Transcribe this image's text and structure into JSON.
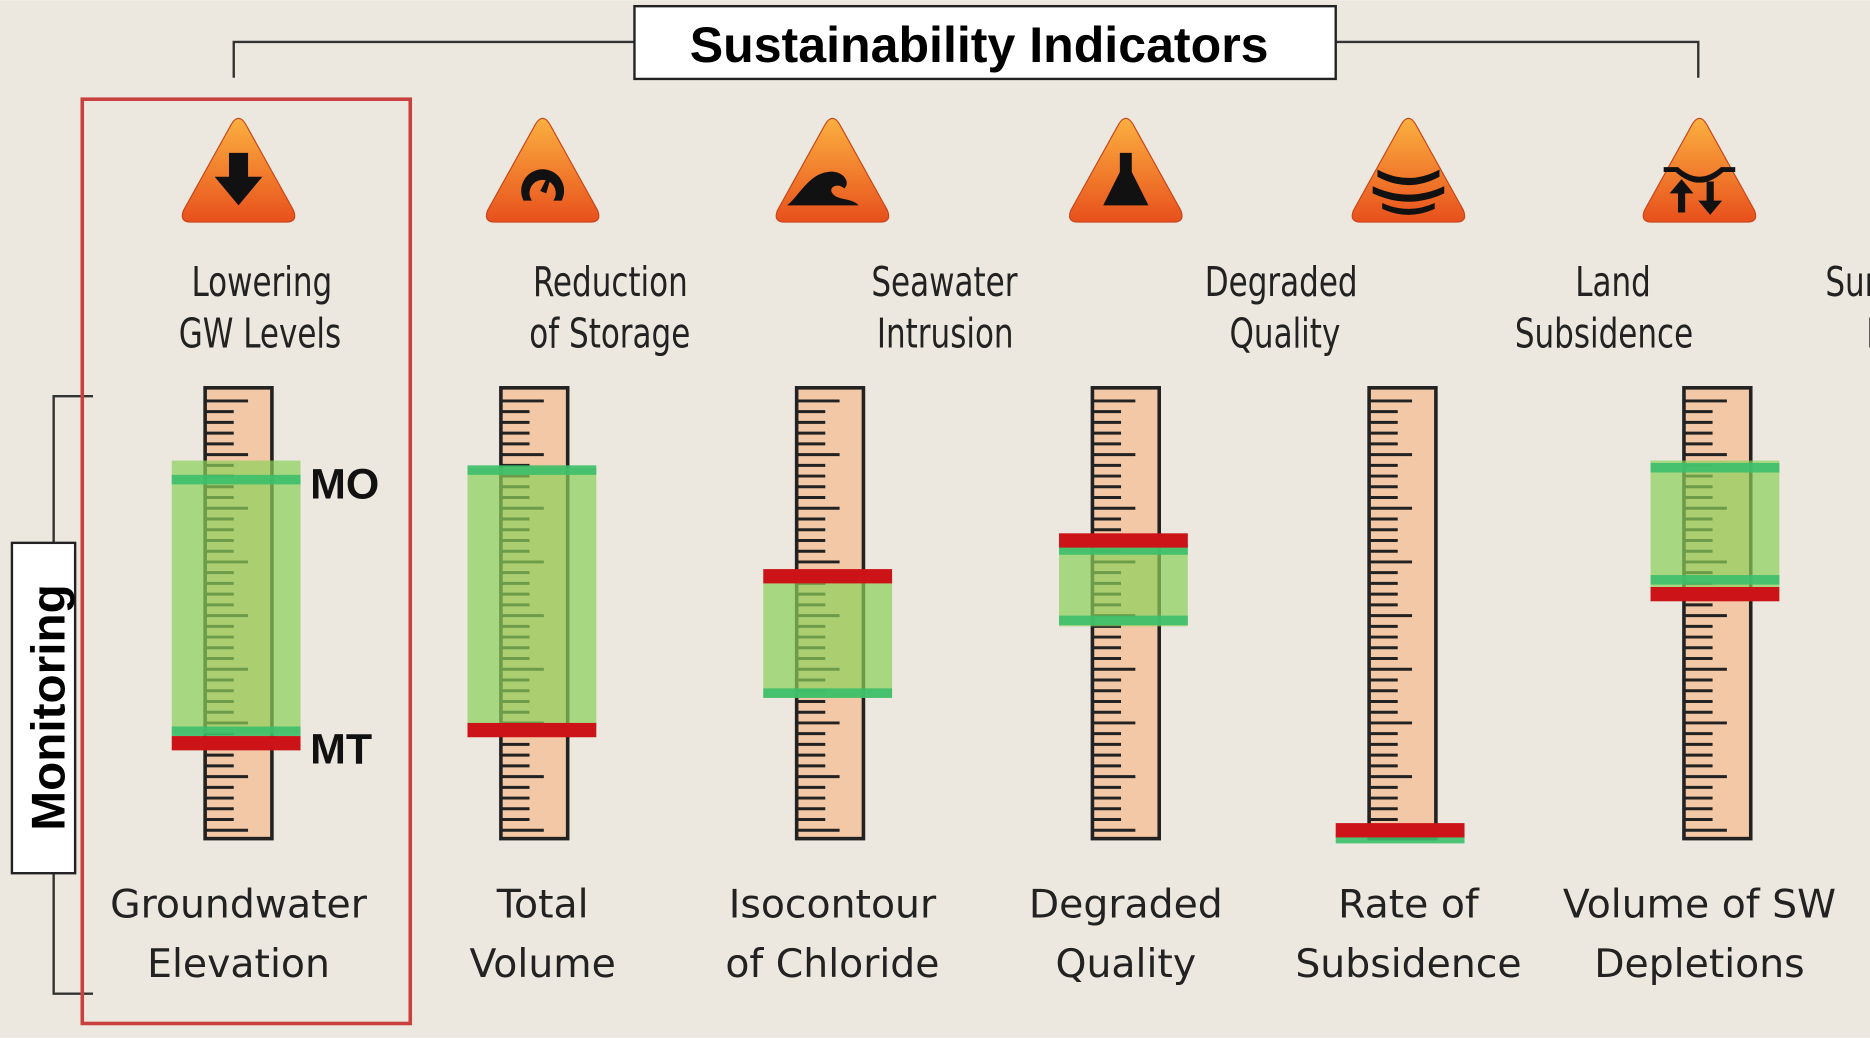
{
  "title": "Sustainability Indicators",
  "side_label": "Monitoring",
  "markers": {
    "mo": "MO",
    "mt": "MT"
  },
  "indicators": [
    {
      "name": [
        "Lowering",
        "GW Levels"
      ],
      "metric": [
        "Groundwater",
        "Elevation"
      ]
    },
    {
      "name": [
        "Reduction",
        "of Storage"
      ],
      "metric": [
        "Total",
        "Volume"
      ]
    },
    {
      "name": [
        "Seawater",
        "Intrusion"
      ],
      "metric": [
        "Isocontour",
        "of Chloride"
      ]
    },
    {
      "name": [
        "Degraded",
        "Quality"
      ],
      "metric": [
        "Degraded",
        "Quality"
      ]
    },
    {
      "name": [
        "Land",
        "Subsidence"
      ],
      "metric": [
        "Rate of",
        "Subsidence"
      ]
    },
    {
      "name": [
        "Surface Water",
        "Depletion"
      ],
      "metric": [
        "Volume of SW",
        "Depletions"
      ]
    }
  ]
}
